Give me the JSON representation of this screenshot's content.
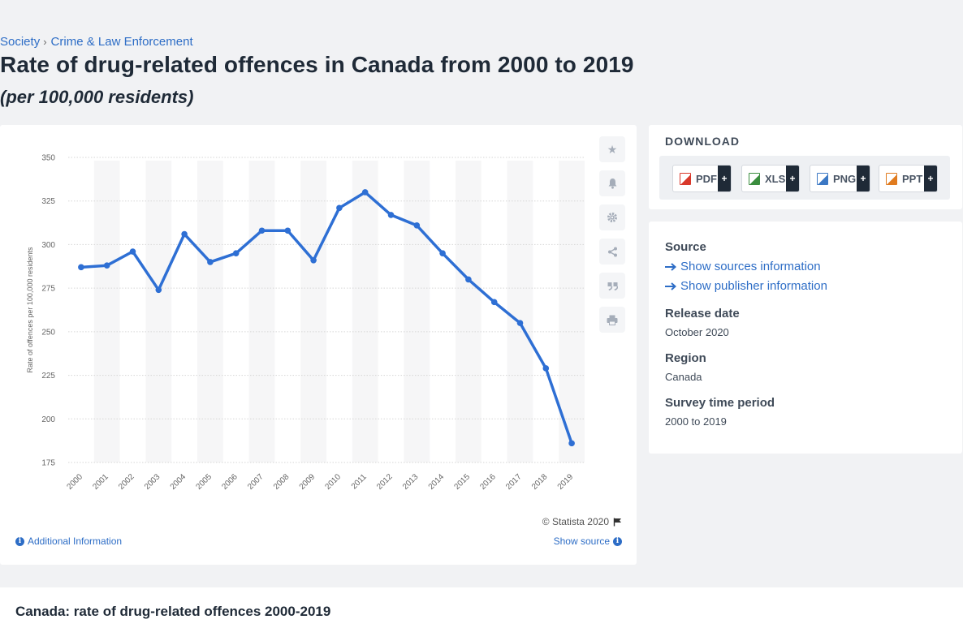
{
  "breadcrumb": {
    "items": [
      "Society",
      "Crime & Law Enforcement"
    ],
    "separator": "›"
  },
  "page": {
    "title": "Rate of drug-related offences in Canada from 2000 to 2019",
    "subtitle": "(per 100,000 residents)"
  },
  "chart_data": {
    "type": "line",
    "x": [
      "2000",
      "2001",
      "2002",
      "2003",
      "2004",
      "2005",
      "2006",
      "2007",
      "2008",
      "2009",
      "2010",
      "2011",
      "2012",
      "2013",
      "2014",
      "2015",
      "2016",
      "2017",
      "2018",
      "2019"
    ],
    "series": [
      {
        "values": [
          287,
          288,
          296,
          274,
          306,
          290,
          295,
          308,
          308,
          291,
          321,
          330,
          317,
          311,
          295,
          280,
          267,
          255,
          229,
          186
        ]
      }
    ],
    "ylabel": "Rate of offences per 100,000 residents",
    "xlabel": "",
    "ylim": [
      175,
      350
    ],
    "yticks": [
      175,
      200,
      225,
      250,
      275,
      300,
      325,
      350
    ],
    "grid": true,
    "line_color": "#2e6fd4",
    "legend": "none"
  },
  "chart_footer": {
    "credit": "© Statista 2020",
    "additional_info": "Additional Information",
    "show_source": "Show source"
  },
  "tools": [
    "star-icon",
    "bell-icon",
    "gear-icon",
    "share-icon",
    "quote-icon",
    "print-icon"
  ],
  "download": {
    "title": "DOWNLOAD",
    "formats": [
      {
        "label": "PDF",
        "color": "#d9382b"
      },
      {
        "label": "XLS",
        "color": "#3a8d3e"
      },
      {
        "label": "PNG",
        "color": "#3b78c4"
      },
      {
        "label": "PPT",
        "color": "#e07b1f"
      }
    ],
    "plus": "+"
  },
  "meta": {
    "source_label": "Source",
    "show_sources": "Show sources information",
    "show_publisher": "Show publisher information",
    "release_label": "Release date",
    "release_value": "October 2020",
    "region_label": "Region",
    "region_value": "Canada",
    "period_label": "Survey time period",
    "period_value": "2000 to 2019"
  },
  "bottom": {
    "title": "Canada: rate of drug-related offences 2000-2019"
  }
}
